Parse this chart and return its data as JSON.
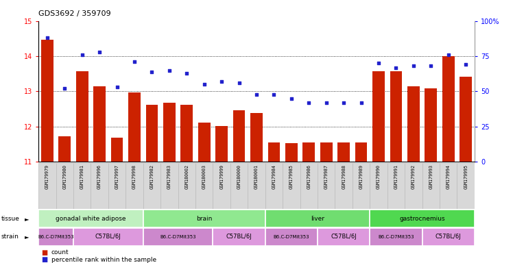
{
  "title": "GDS3692 / 359709",
  "samples": [
    "GSM179979",
    "GSM179980",
    "GSM179981",
    "GSM179996",
    "GSM179997",
    "GSM179998",
    "GSM179982",
    "GSM179983",
    "GSM180002",
    "GSM180003",
    "GSM179999",
    "GSM180000",
    "GSM180001",
    "GSM179984",
    "GSM179985",
    "GSM179986",
    "GSM179987",
    "GSM179988",
    "GSM179989",
    "GSM179990",
    "GSM179991",
    "GSM179992",
    "GSM179993",
    "GSM179994",
    "GSM179995"
  ],
  "count_values": [
    14.47,
    11.72,
    13.57,
    13.14,
    11.68,
    12.97,
    12.62,
    12.68,
    12.62,
    12.12,
    12.02,
    12.47,
    12.38,
    11.55,
    11.52,
    11.55,
    11.55,
    11.55,
    11.55,
    13.57,
    13.57,
    13.14,
    13.09,
    14.0,
    13.42
  ],
  "percentile_values": [
    88,
    52,
    76,
    78,
    53,
    71,
    64,
    65,
    63,
    55,
    57,
    56,
    48,
    48,
    45,
    42,
    42,
    42,
    42,
    70,
    67,
    68,
    68,
    76,
    69
  ],
  "tissue_groups": [
    {
      "label": "gonadal white adipose",
      "start": 0,
      "end": 5
    },
    {
      "label": "brain",
      "start": 6,
      "end": 12
    },
    {
      "label": "liver",
      "start": 13,
      "end": 18
    },
    {
      "label": "gastrocnemius",
      "start": 19,
      "end": 24
    }
  ],
  "tissue_colors": [
    "#c0f0c0",
    "#90e890",
    "#70dd70",
    "#50d850"
  ],
  "strain_groups": [
    {
      "label": "B6.C-D7Mit353",
      "start": 0,
      "end": 1
    },
    {
      "label": "C57BL/6J",
      "start": 2,
      "end": 5
    },
    {
      "label": "B6.C-D7Mit353",
      "start": 6,
      "end": 9
    },
    {
      "label": "C57BL/6J",
      "start": 10,
      "end": 12
    },
    {
      "label": "B6.C-D7Mit353",
      "start": 13,
      "end": 15
    },
    {
      "label": "C57BL/6J",
      "start": 16,
      "end": 18
    },
    {
      "label": "B6.C-D7Mit353",
      "start": 19,
      "end": 21
    },
    {
      "label": "C57BL/6J",
      "start": 22,
      "end": 24
    }
  ],
  "strain_colors": [
    "#cc88cc",
    "#dd99dd",
    "#cc88cc",
    "#dd99dd",
    "#cc88cc",
    "#dd99dd",
    "#cc88cc",
    "#dd99dd"
  ],
  "ylim_left": [
    11,
    15
  ],
  "ylim_right": [
    0,
    100
  ],
  "yticks_left": [
    11,
    12,
    13,
    14,
    15
  ],
  "yticks_right": [
    0,
    25,
    50,
    75,
    100
  ],
  "bar_color": "#cc2200",
  "dot_color": "#2222cc",
  "grid_lines": [
    12,
    13,
    14
  ],
  "label_bg": "#d8d8d8",
  "label_border": "#bbbbbb"
}
